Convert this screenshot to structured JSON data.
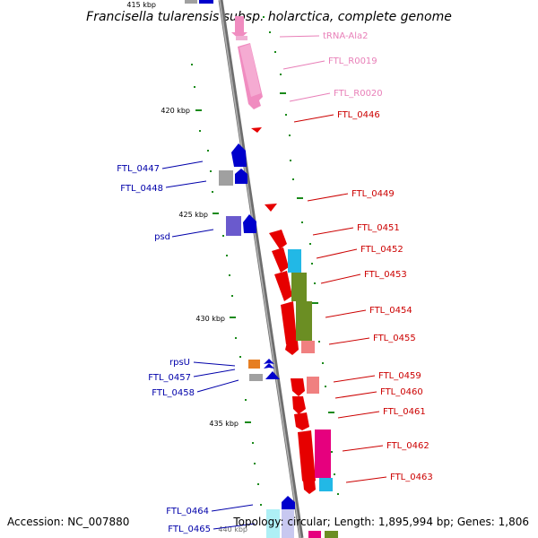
{
  "title": "Francisella tularensis subsp. holarctica, complete genome",
  "footer": {
    "accession": "Accession: NC_007880",
    "topology": "Topology: circular; Length: 1,895,994 bp; Genes: 1,806"
  },
  "kbp_labels": [
    "415 kbp",
    "420 kbp",
    "425 kbp",
    "430 kbp",
    "435 kbp",
    "440 kbp"
  ],
  "left_genes": [
    "FTL_0447",
    "FTL_0448",
    "psd",
    "rpsU",
    "FTL_0457",
    "FTL_0458",
    "FTL_0464",
    "FTL_0465"
  ],
  "right_genes": [
    "tRNA-Ala2",
    "FTL_R0019",
    "FTL_R0020",
    "FTL_0446",
    "FTL_0449",
    "FTL_0451",
    "FTL_0452",
    "FTL_0453",
    "FTL_0454",
    "FTL_0455",
    "FTL_0459",
    "FTL_0460",
    "FTL_0461",
    "FTL_0462",
    "FTL_0463"
  ],
  "colors": {
    "backbone": "#8c8c8c",
    "tick": "#1a8a1a",
    "rna_pink": "#f08cc0",
    "cds_red": "#e60000",
    "cds_blue": "#0000cc",
    "label_red": "#cc0000",
    "label_blue": "#0000aa",
    "label_pink": "#e87fb8",
    "cyan": "#22b8e6",
    "olive": "#6b8e23",
    "salmon": "#f08080",
    "magenta": "#e6007e",
    "orange": "#e67e22",
    "grey": "#a0a0a0",
    "violet": "#6a5acd"
  }
}
